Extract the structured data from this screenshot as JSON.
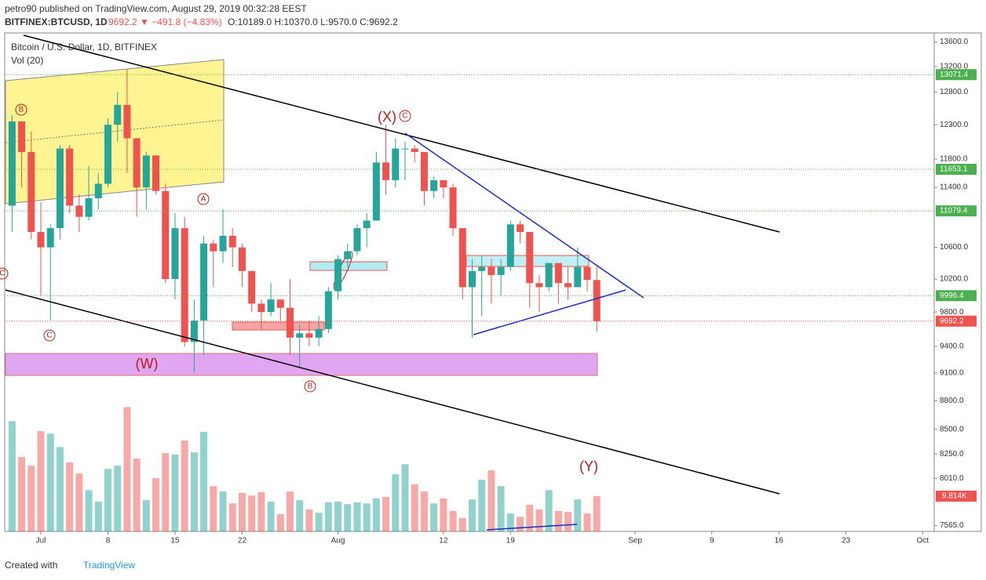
{
  "header": {
    "line1": "petro90 published on TradingView.com, August 29, 2019 00:32:28 EEST",
    "symbol": "BITFINEX:BTCUSD, 1D",
    "change": "9692.2 ▼ −491.8 (−4.83%)",
    "ohlc": "O:10189.0 H:10370.0 L:9570.0 C:9692.2"
  },
  "footer": {
    "created": "Created with",
    "brand": "TradingView"
  },
  "chart_data": {
    "type": "candlestick",
    "title": "Bitcoin / U.S. Dollar, 1D, BITFINEX",
    "volume_title": "Vol (20)",
    "log_scale": true,
    "grid": false,
    "up_color": "#26a69a",
    "down_color": "#ef5350",
    "x": [
      -3,
      -2,
      -1,
      0,
      1,
      2,
      3,
      4,
      5,
      6,
      7,
      8,
      9,
      10,
      11,
      12,
      13,
      14,
      15,
      16,
      17,
      18,
      19,
      20,
      21,
      22,
      23,
      24,
      25,
      26,
      27,
      28,
      29,
      30,
      31,
      32,
      33,
      34,
      35,
      36,
      37,
      38,
      39,
      40,
      41,
      42,
      43,
      44,
      45,
      46,
      47,
      48,
      49,
      50,
      51,
      52,
      53,
      54,
      55,
      56,
      57,
      58
    ],
    "open": [
      11150,
      12350,
      11900,
      10800,
      10600,
      10850,
      11950,
      11150,
      11000,
      11250,
      11450,
      12300,
      12600,
      12100,
      11400,
      11850,
      11350,
      10200,
      10850,
      9450,
      9700,
      10650,
      10550,
      10750,
      10600,
      10300,
      9900,
      9800,
      9950,
      9850,
      9500,
      9550,
      9500,
      9600,
      10050,
      10450,
      10550,
      10850,
      10950,
      11750,
      11500,
      11950,
      11950,
      11900,
      11350,
      11500,
      11400,
      10850,
      10100,
      10300,
      10350,
      10250,
      10350,
      10900,
      10800,
      10150,
      10100,
      10400,
      10150,
      10100,
      10350,
      10189
    ],
    "high": [
      12450,
      12350,
      12200,
      11200,
      10900,
      12000,
      12000,
      11300,
      11700,
      11600,
      12400,
      12800,
      13150,
      12100,
      11900,
      11850,
      11450,
      11050,
      11000,
      9950,
      10750,
      10700,
      11100,
      10850,
      10650,
      10300,
      9950,
      10150,
      9950,
      10200,
      9650,
      9700,
      9750,
      10100,
      10500,
      10650,
      10900,
      11050,
      11900,
      12300,
      12100,
      12050,
      12000,
      11900,
      11550,
      11500,
      11450,
      10850,
      10450,
      10500,
      10450,
      10450,
      10950,
      10950,
      10800,
      10250,
      10400,
      10400,
      10350,
      10600,
      10370,
      10370
    ],
    "low": [
      10800,
      11400,
      10700,
      10000,
      9700,
      10700,
      11050,
      10800,
      10950,
      11100,
      11400,
      12050,
      11600,
      11000,
      11100,
      11300,
      10150,
      9950,
      9400,
      9100,
      9300,
      10100,
      10400,
      10350,
      10100,
      9800,
      9600,
      9750,
      9700,
      9300,
      9150,
      9400,
      9400,
      9550,
      9950,
      10350,
      10500,
      10600,
      10950,
      11300,
      11400,
      11500,
      11750,
      11150,
      11250,
      11250,
      10750,
      9950,
      9500,
      9750,
      9900,
      10000,
      10300,
      10650,
      9850,
      9800,
      10050,
      9900,
      9950,
      10100,
      10050,
      9570
    ],
    "close": [
      12350,
      11900,
      10800,
      10600,
      10850,
      11950,
      11150,
      11000,
      11250,
      11450,
      12300,
      12600,
      12100,
      11400,
      11850,
      11350,
      10200,
      10850,
      9450,
      9700,
      10650,
      10550,
      10750,
      10600,
      10300,
      9900,
      9800,
      9950,
      9850,
      9500,
      9550,
      9500,
      9600,
      10050,
      10450,
      10550,
      10850,
      10950,
      11750,
      11500,
      11950,
      11950,
      11900,
      11350,
      11500,
      11400,
      10850,
      10100,
      10300,
      10350,
      10250,
      10350,
      10900,
      10800,
      10150,
      10100,
      10400,
      10150,
      10100,
      10350,
      10189,
      9692.2
    ],
    "volume": [
      30.7,
      20.7,
      18.3,
      27.9,
      27.2,
      23.5,
      19.2,
      16.1,
      11.5,
      8.3,
      17.4,
      18.3,
      34.6,
      20.3,
      8.7,
      14.8,
      21.8,
      21.4,
      25.3,
      22,
      27.7,
      12.6,
      11.1,
      7.8,
      10.7,
      10,
      10.9,
      8.3,
      4.8,
      11.1,
      8.7,
      6.1,
      5.2,
      8.1,
      8.3,
      7.6,
      8.1,
      7.8,
      9.2,
      9.6,
      15.9,
      18.7,
      13.1,
      11.1,
      7.8,
      9.2,
      5.7,
      3.7,
      8.9,
      14.4,
      17,
      12.6,
      5,
      4.1,
      7.4,
      6.1,
      11.5,
      5.7,
      5.4,
      8.9,
      5,
      9.814
    ],
    "volume_ylim": [
      0,
      36
    ],
    "volume_tag": {
      "value": 9.814,
      "label": "9.814K"
    },
    "xlim": [
      -3.77,
      93.2
    ],
    "xticks": [
      {
        "value": 0,
        "label": "Jul"
      },
      {
        "value": 7,
        "label": "8"
      },
      {
        "value": 14,
        "label": "15"
      },
      {
        "value": 21,
        "label": "22"
      },
      {
        "value": 31,
        "label": "Aug"
      },
      {
        "value": 42,
        "label": "12"
      },
      {
        "value": 49,
        "label": "19"
      },
      {
        "value": 62,
        "label": "Sep"
      },
      {
        "value": 70,
        "label": "9"
      },
      {
        "value": 77,
        "label": "16"
      },
      {
        "value": 84,
        "label": "23"
      },
      {
        "value": 92,
        "label": "Oct"
      }
    ],
    "ylim": [
      7510,
      13750
    ],
    "yticks": [
      {
        "value": 13600,
        "label": "13600.0"
      },
      {
        "value": 13200,
        "label": "13200.0"
      },
      {
        "value": 12800,
        "label": "12800.0"
      },
      {
        "value": 12300,
        "label": "12300.0"
      },
      {
        "value": 11800,
        "label": "11800.0"
      },
      {
        "value": 11400,
        "label": "11400.0"
      },
      {
        "value": 10600,
        "label": "10600.0"
      },
      {
        "value": 10200,
        "label": "10200.0"
      },
      {
        "value": 9800,
        "label": "9800.0"
      },
      {
        "value": 9400,
        "label": "9400.0"
      },
      {
        "value": 9100,
        "label": "9100.0"
      },
      {
        "value": 8800,
        "label": "8800.0"
      },
      {
        "value": 8500,
        "label": "8500.0"
      },
      {
        "value": 8250,
        "label": "8250.0"
      },
      {
        "value": 8010,
        "label": "8010.0"
      },
      {
        "value": 7565,
        "label": "7565.0"
      }
    ],
    "levels": [
      {
        "value": 13071.4,
        "color": "#4caf50"
      },
      {
        "value": 11653.1,
        "color": "#4caf50"
      },
      {
        "value": 11079.4,
        "color": "#4caf50"
      },
      {
        "value": 9996.4,
        "color": "#4caf50"
      },
      {
        "value": 9692.2,
        "color": "#ef5350"
      }
    ],
    "annotations": [
      "B",
      "A",
      "C",
      "C",
      "B",
      "C",
      "(X)",
      "(W)",
      "(Y)"
    ]
  }
}
